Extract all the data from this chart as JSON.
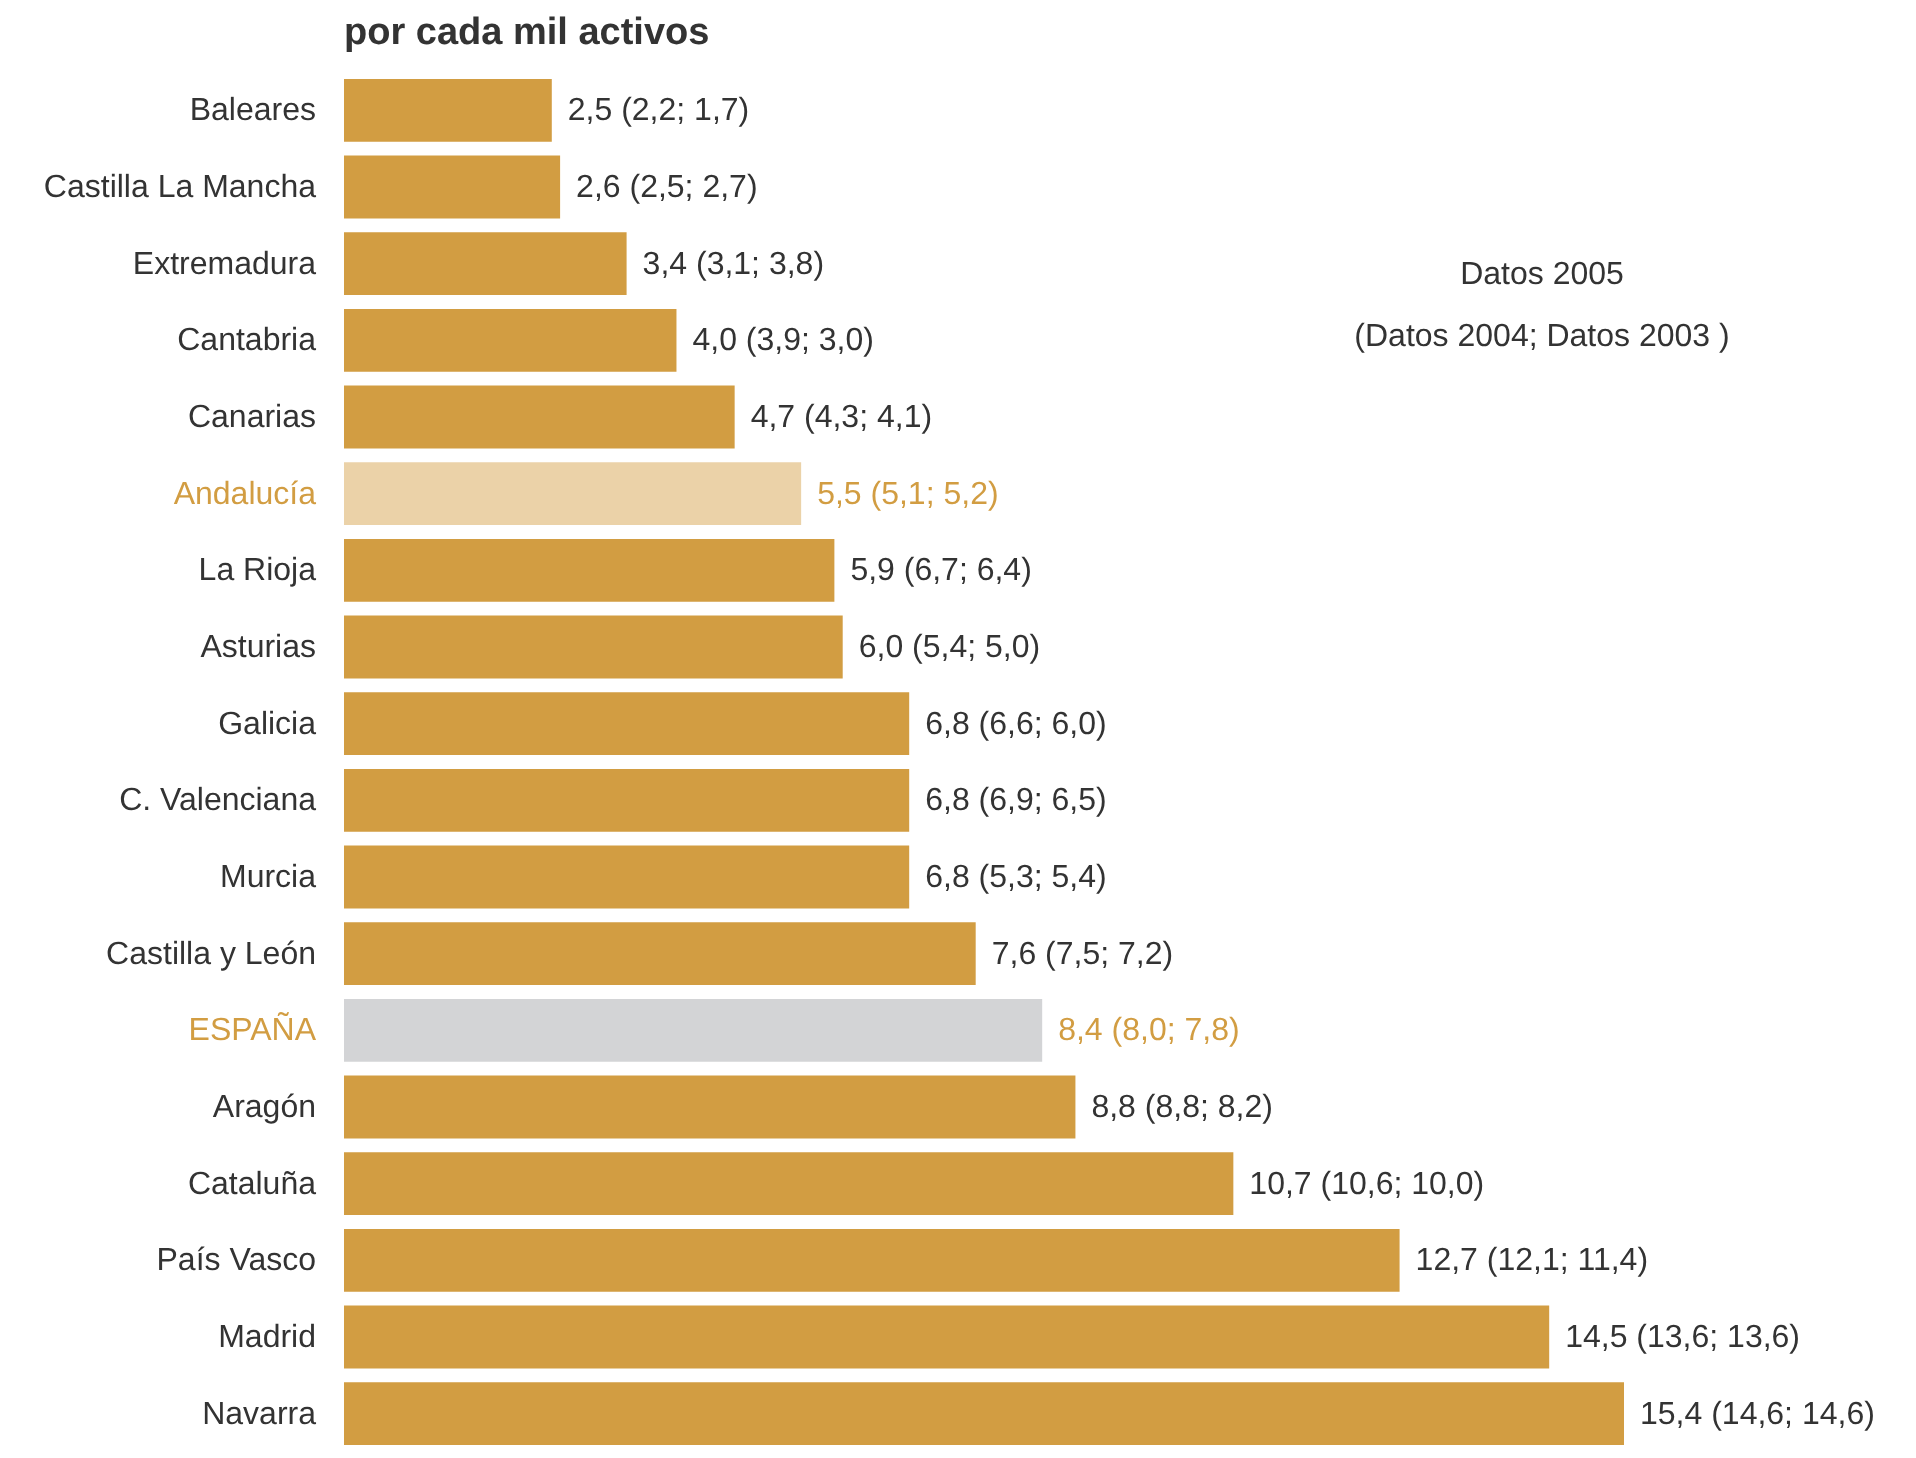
{
  "chart_data": {
    "type": "bar",
    "orientation": "horizontal",
    "title": "por cada mil activos",
    "categories": [
      "Baleares",
      "Castilla La Mancha",
      "Extremadura",
      "Cantabria",
      "Canarias",
      "Andalucía",
      "La Rioja",
      "Asturias",
      "Galicia",
      "C. Valenciana",
      "Murcia",
      "Castilla y León",
      "ESPAÑA",
      "Aragón",
      "Cataluña",
      "País Vasco",
      "Madrid",
      "Navarra"
    ],
    "values": [
      2.5,
      2.6,
      3.4,
      4.0,
      4.7,
      5.5,
      5.9,
      6.0,
      6.8,
      6.8,
      6.8,
      7.6,
      8.4,
      8.8,
      10.7,
      12.7,
      14.5,
      15.4
    ],
    "value_labels": [
      "2,5 (2,2; 1,7)",
      "2,6 (2,5; 2,7)",
      "3,4 (3,1; 3,8)",
      "4,0 (3,9; 3,0)",
      "4,7 (4,3; 4,1)",
      "5,5 (5,1; 5,2)",
      "5,9 (6,7; 6,4)",
      "6,0 (5,4; 5,0)",
      "6,8 (6,6; 6,0)",
      "6,8 (6,9; 6,5)",
      "6,8 (5,3; 5,4)",
      "7,6 (7,5; 7,2)",
      "8,4 (8,0; 7,8)",
      "8,8 (8,8; 8,2)",
      "10,7 (10,6; 10,0)",
      "12,7 (12,1; 11,4)",
      "14,5 (13,6; 13,6)",
      "15,4 (14,6; 14,6)"
    ],
    "colors": [
      "#d29d42",
      "#d29d42",
      "#d29d42",
      "#d29d42",
      "#d29d42",
      "#ebd2a8",
      "#d29d42",
      "#d29d42",
      "#d29d42",
      "#d29d42",
      "#d29d42",
      "#d29d42",
      "#d3d4d6",
      "#d29d42",
      "#d29d42",
      "#d29d42",
      "#d29d42",
      "#d29d42"
    ],
    "annotations": [
      "Datos 2005",
      "(Datos 2004; Datos 2003 )"
    ]
  }
}
